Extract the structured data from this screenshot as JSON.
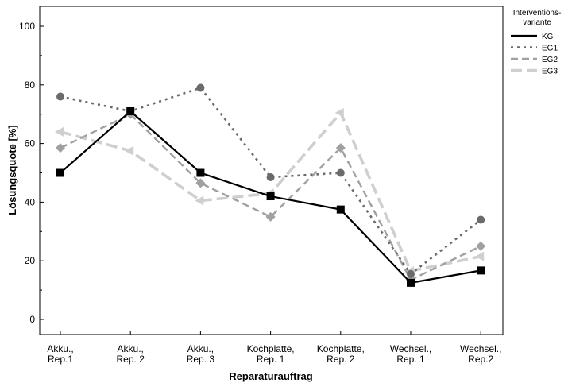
{
  "chart_data": {
    "type": "line",
    "title": "",
    "xlabel": "Reparaturauftrag",
    "ylabel": "Lösungsquote [%]",
    "ylim": [
      0,
      100
    ],
    "yticks": [
      0,
      20,
      40,
      60,
      80,
      100
    ],
    "grid": false,
    "legend_position": "right",
    "legend_title": [
      "Interventions-",
      "variante"
    ],
    "categories": [
      [
        "Akku.,",
        "Rep.1"
      ],
      [
        "Akku.,",
        "Rep. 2"
      ],
      [
        "Akku.,",
        "Rep. 3"
      ],
      [
        "Kochplatte,",
        "Rep. 1"
      ],
      [
        "Kochplatte,",
        "Rep. 2"
      ],
      [
        "Wechsel.,",
        "Rep. 1"
      ],
      [
        "Wechsel.,",
        "Rep.2"
      ]
    ],
    "series": [
      {
        "name": "KG",
        "values": [
          50,
          71,
          50,
          42,
          37.5,
          12.5,
          16.7
        ],
        "color": "#000000",
        "dash": "solid",
        "marker": "square"
      },
      {
        "name": "EG1",
        "values": [
          76,
          71,
          79,
          48.5,
          50,
          15.5,
          34
        ],
        "color": "#6b6b6b",
        "dash": "dot",
        "marker": "circle"
      },
      {
        "name": "EG2",
        "values": [
          58.5,
          70,
          46.5,
          35,
          58.5,
          13.5,
          25
        ],
        "color": "#a0a0a0",
        "dash": "dash",
        "marker": "diamond"
      },
      {
        "name": "EG3",
        "values": [
          64,
          57.5,
          40.5,
          43,
          70.5,
          16.5,
          21.5
        ],
        "color": "#cfcfcf",
        "dash": "longdash",
        "marker": "triangle"
      }
    ]
  }
}
